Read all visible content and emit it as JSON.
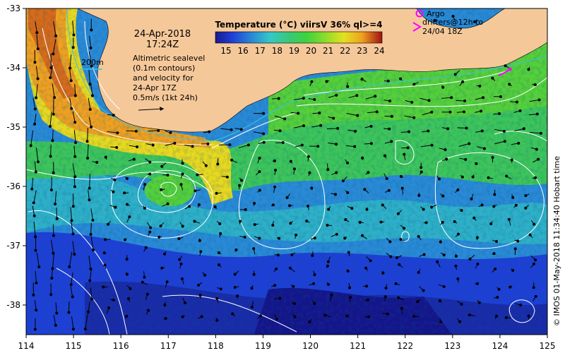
{
  "map": {
    "date": "24-Apr-2018",
    "time": "17:24Z",
    "colorbar_title": "Temperature (°C) viirsV 36% ql>=4",
    "colorbar_ticks": [
      "15",
      "16",
      "17",
      "18",
      "19",
      "20",
      "21",
      "22",
      "23",
      "24"
    ],
    "colorbar_colors": [
      "#1a1a8c",
      "#1f3fd6",
      "#2a8ad6",
      "#35c8c8",
      "#38c878",
      "#3fd23f",
      "#8edc2a",
      "#e2e21f",
      "#f0a020",
      "#d84a16",
      "#a01010"
    ],
    "contour_label": "200m",
    "annotation_lines": [
      "Altimetric sealevel",
      "(0.1m contours)",
      "and velocity for",
      "24-Apr 17Z",
      "0.5m/s (1kt 24h)"
    ],
    "legend": {
      "argo_label": "Argo",
      "drifter_lines": [
        "drifters@12h to",
        "24/04 18Z"
      ],
      "argo_color": "#ff00ff",
      "drifter_color": "#ff00ff"
    },
    "credit": "© IMOS 01-May-2018 11:34:40 Hobart time",
    "land_color": "#f5c89a",
    "contour_color": "#ffffff",
    "isobath_color": "#40c0e0"
  },
  "chart_data": {
    "type": "heatmap",
    "x_ticks": [
      "114",
      "115",
      "116",
      "117",
      "118",
      "119",
      "120",
      "121",
      "122",
      "123",
      "124",
      "125"
    ],
    "y_ticks": [
      "-33",
      "-34",
      "-35",
      "-36",
      "-37",
      "-38"
    ],
    "xlim": [
      114,
      125
    ],
    "ylim": [
      -38.5,
      -33
    ],
    "value_range": [
      15,
      24
    ],
    "unit": "°C"
  }
}
